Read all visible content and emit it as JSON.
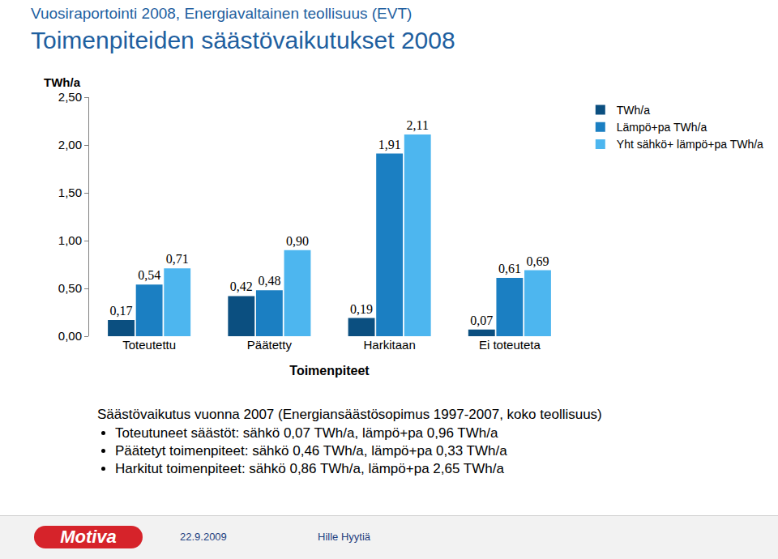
{
  "header": {
    "subtitle": "Vuosiraportointi 2008, Energiavaltainen teollisuus (EVT)",
    "title": "Toimenpiteiden säästövaikutukset 2008"
  },
  "chart_data": {
    "type": "bar",
    "y_label": "TWh/a",
    "x_label": "Toimenpiteet",
    "categories": [
      "Toteutettu",
      "Päätetty",
      "Harkitaan",
      "Ei toteuteta"
    ],
    "series": [
      {
        "name": "TWh/a",
        "color": "#0b4f80",
        "values": [
          0.17,
          0.42,
          0.19,
          0.07
        ],
        "value_labels": [
          "0,17",
          "0,42",
          "0,19",
          "0,07"
        ]
      },
      {
        "name": "Lämpö+pa TWh/a",
        "color": "#1b7fc2",
        "values": [
          0.54,
          0.48,
          1.91,
          0.61
        ],
        "value_labels": [
          "0,54",
          "0,48",
          "1,91",
          "0,61"
        ]
      },
      {
        "name": "Yht sähkö+ lämpö+pa TWh/a",
        "color": "#4db6ef",
        "values": [
          0.71,
          0.9,
          2.11,
          0.69
        ],
        "value_labels": [
          "0,71",
          "0,90",
          "2,11",
          "0,69"
        ]
      }
    ],
    "ylim": [
      0,
      2.5
    ],
    "yticks": [
      {
        "value": 0,
        "label": "0,00"
      },
      {
        "value": 0.5,
        "label": "0,50"
      },
      {
        "value": 1,
        "label": "1,00"
      },
      {
        "value": 1.5,
        "label": "1,50"
      },
      {
        "value": 2,
        "label": "2,00"
      },
      {
        "value": 2.5,
        "label": "2,50"
      }
    ],
    "grid": false,
    "legend": "top right",
    "data_labels": true
  },
  "notes": {
    "heading": "Säästövaikutus vuonna 2007 (Energiansäästösopimus 1997-2007, koko teollisuus)",
    "bullets": [
      "Toteutuneet säästöt: sähkö 0,07 TWh/a, lämpö+pa 0,96 TWh/a",
      "Päätetyt toimenpiteet: sähkö 0,46 TWh/a, lämpö+pa 0,33 TWh/a",
      "Harkitut toimenpiteet: sähkö 0,86 TWh/a, lämpö+pa 2,65 TWh/a"
    ]
  },
  "footer": {
    "logo": "Motiva",
    "date": "22.9.2009",
    "author": "Hille Hyytiä"
  }
}
